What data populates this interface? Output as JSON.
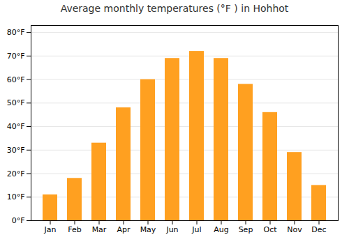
{
  "chart_data": {
    "type": "bar",
    "title": "Average monthly temperatures (°F ) in Hohhot",
    "categories": [
      "Jan",
      "Feb",
      "Mar",
      "Apr",
      "May",
      "Jun",
      "Jul",
      "Aug",
      "Sep",
      "Oct",
      "Nov",
      "Dec"
    ],
    "values": [
      11,
      18,
      33,
      48,
      60,
      69,
      72,
      69,
      58,
      46,
      29,
      15
    ],
    "color": "#FFA020",
    "ylim": [
      0,
      83
    ],
    "yticks": [
      {
        "value": 0,
        "label": "0°F"
      },
      {
        "value": 10,
        "label": "10°F"
      },
      {
        "value": 20,
        "label": "20°F"
      },
      {
        "value": 30,
        "label": "30°F"
      },
      {
        "value": 40,
        "label": "40°F"
      },
      {
        "value": 50,
        "label": "50°F"
      },
      {
        "value": 60,
        "label": "60°F"
      },
      {
        "value": 70,
        "label": "70°F"
      },
      {
        "value": 80,
        "label": "80°F"
      }
    ],
    "grid": true
  }
}
